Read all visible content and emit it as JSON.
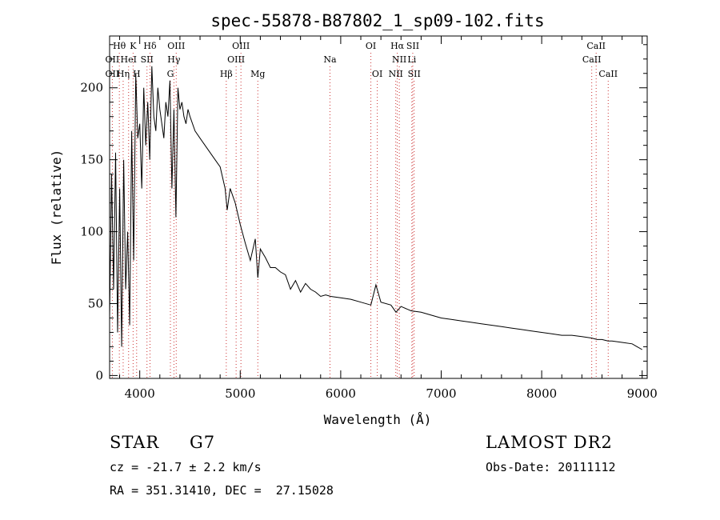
{
  "chart_data": {
    "type": "line",
    "title": "spec-55878-B87802_1_sp09-102.fits",
    "xlabel": "Wavelength (Å)",
    "ylabel": "Flux (relative)",
    "xlim": [
      3700,
      9050
    ],
    "ylim": [
      -2,
      236
    ],
    "xticks": [
      4000,
      5000,
      6000,
      7000,
      8000,
      9000
    ],
    "yticks": [
      0,
      50,
      100,
      150,
      200
    ],
    "grid": false,
    "line_color": "#000000",
    "marker_color": "#cc3333",
    "series": [
      {
        "x": [
          3700,
          3720,
          3740,
          3760,
          3780,
          3800,
          3820,
          3840,
          3860,
          3880,
          3900,
          3920,
          3940,
          3960,
          3980,
          4000,
          4020,
          4040,
          4060,
          4080,
          4100,
          4120,
          4140,
          4160,
          4180,
          4200,
          4220,
          4240,
          4260,
          4280,
          4300,
          4320,
          4340,
          4360,
          4380,
          4400,
          4420,
          4440,
          4460,
          4480,
          4500,
          4550,
          4600,
          4650,
          4700,
          4750,
          4800,
          4850,
          4870,
          4900,
          4950,
          5000,
          5050,
          5100,
          5150,
          5175,
          5200,
          5250,
          5300,
          5350,
          5400,
          5450,
          5500,
          5550,
          5600,
          5650,
          5700,
          5750,
          5800,
          5850,
          5900,
          6000,
          6100,
          6200,
          6300,
          6350,
          6400,
          6500,
          6550,
          6600,
          6700,
          6800,
          6900,
          7000,
          7100,
          7200,
          7300,
          7400,
          7500,
          7600,
          7700,
          7800,
          7900,
          8000,
          8100,
          8200,
          8300,
          8400,
          8500,
          8550,
          8600,
          8660,
          8700,
          8800,
          8900,
          8950,
          9000
        ],
        "y": [
          40,
          140,
          60,
          155,
          30,
          130,
          20,
          150,
          60,
          100,
          35,
          170,
          80,
          210,
          165,
          175,
          130,
          200,
          160,
          190,
          150,
          215,
          180,
          170,
          200,
          185,
          175,
          165,
          190,
          180,
          205,
          130,
          185,
          110,
          200,
          185,
          190,
          180,
          175,
          185,
          180,
          170,
          165,
          160,
          155,
          150,
          145,
          130,
          115,
          130,
          120,
          105,
          92,
          80,
          95,
          68,
          88,
          82,
          75,
          75,
          72,
          70,
          60,
          66,
          58,
          64,
          60,
          58,
          55,
          56,
          55,
          54,
          53,
          51,
          49,
          63,
          51,
          49,
          44,
          48,
          45,
          44,
          42,
          40,
          39,
          38,
          37,
          36,
          35,
          34,
          33,
          32,
          31,
          30,
          29,
          28,
          28,
          27,
          26,
          25,
          25,
          24,
          24,
          23,
          22,
          20,
          18
        ]
      }
    ],
    "lines": {
      "row1": [
        {
          "label": "Hθ",
          "x": 3797
        },
        {
          "label": "K",
          "x": 3934
        },
        {
          "label": "Hδ",
          "x": 4102
        },
        {
          "label": "OIII",
          "x": 4363
        },
        {
          "label": "OIII",
          "x": 5007
        },
        {
          "label": "OI",
          "x": 6300
        },
        {
          "label": "Hα",
          "x": 6563
        },
        {
          "label": "SII",
          "x": 6717
        },
        {
          "label": "CaII",
          "x": 8542
        }
      ],
      "row2": [
        {
          "label": "OII",
          "x": 3727
        },
        {
          "label": "HeI",
          "x": 3889
        },
        {
          "label": "SII",
          "x": 4072
        },
        {
          "label": "Hγ",
          "x": 4340
        },
        {
          "label": "OIII",
          "x": 4959
        },
        {
          "label": "Na",
          "x": 5893
        },
        {
          "label": "NII",
          "x": 6583
        },
        {
          "label": "Li",
          "x": 6708
        },
        {
          "label": "CaII",
          "x": 8498
        }
      ],
      "row3": [
        {
          "label": "OII",
          "x": 3727
        },
        {
          "label": "Hη",
          "x": 3835
        },
        {
          "label": "H",
          "x": 3969
        },
        {
          "label": "G",
          "x": 4305
        },
        {
          "label": "Hβ",
          "x": 4861
        },
        {
          "label": "Mg",
          "x": 5175
        },
        {
          "label": "OI",
          "x": 6364
        },
        {
          "label": "NII",
          "x": 6548
        },
        {
          "label": "SII",
          "x": 6731
        },
        {
          "label": "CaII",
          "x": 8662
        }
      ]
    }
  },
  "info": {
    "object_class": "STAR",
    "subclass": "G7",
    "survey": "LAMOST DR2",
    "cz": "cz = -21.7 ± 2.2 km/s",
    "obs_date": "Obs-Date: 20111112",
    "coords": "RA = 351.31410, DEC =  27.15028"
  }
}
